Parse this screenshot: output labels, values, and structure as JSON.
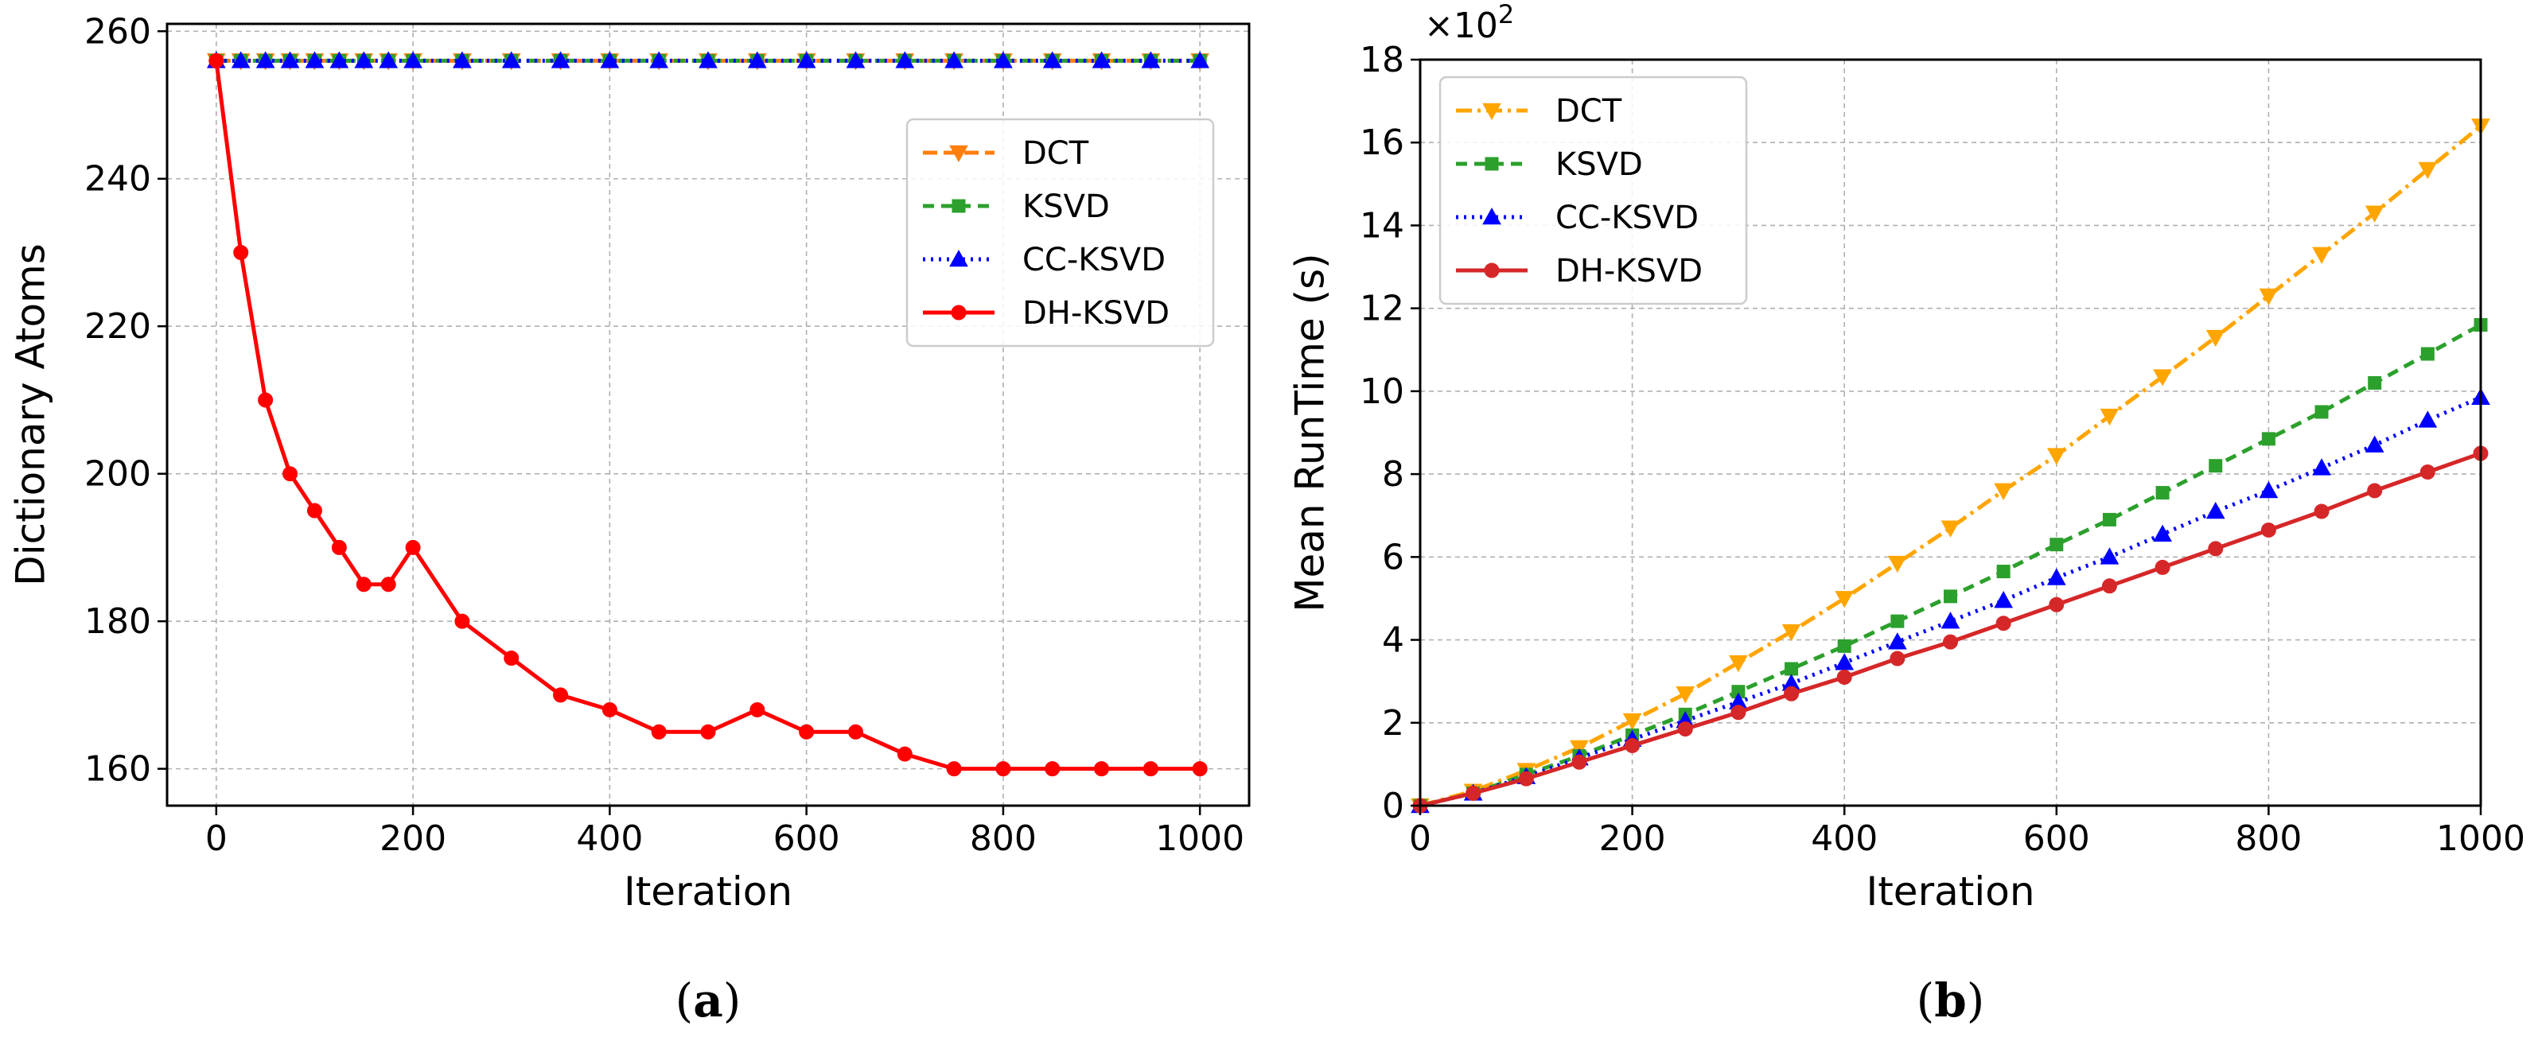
{
  "chart_data": [
    {
      "id": "a",
      "type": "line",
      "panel_label": "a",
      "xlabel": "Iteration",
      "ylabel": "Dictionary Atoms",
      "xlim": [
        -50,
        1050
      ],
      "ylim": [
        155,
        261
      ],
      "xticks": [
        0,
        200,
        400,
        600,
        800,
        1000
      ],
      "yticks": [
        160,
        180,
        200,
        220,
        240,
        260
      ],
      "grid": true,
      "legend_position": "upper-right",
      "series": [
        {
          "name": "DCT",
          "color": "#ff7f0e",
          "dash": "18 8",
          "marker": "triangle-down",
          "width": 5,
          "x": [
            0,
            25,
            50,
            75,
            100,
            125,
            150,
            175,
            200,
            250,
            300,
            350,
            400,
            450,
            500,
            550,
            600,
            650,
            700,
            750,
            800,
            850,
            900,
            950,
            1000
          ],
          "y": [
            256,
            256,
            256,
            256,
            256,
            256,
            256,
            256,
            256,
            256,
            256,
            256,
            256,
            256,
            256,
            256,
            256,
            256,
            256,
            256,
            256,
            256,
            256,
            256,
            256
          ]
        },
        {
          "name": "KSVD",
          "color": "#2ca02c",
          "dash": "14 9",
          "marker": "square",
          "width": 5,
          "x": [
            0,
            25,
            50,
            75,
            100,
            125,
            150,
            175,
            200,
            250,
            300,
            350,
            400,
            450,
            500,
            550,
            600,
            650,
            700,
            750,
            800,
            850,
            900,
            950,
            1000
          ],
          "y": [
            256,
            256,
            256,
            256,
            256,
            256,
            256,
            256,
            256,
            256,
            256,
            256,
            256,
            256,
            256,
            256,
            256,
            256,
            256,
            256,
            256,
            256,
            256,
            256,
            256
          ]
        },
        {
          "name": "CC-KSVD",
          "color": "#0000ff",
          "dash": "3 7",
          "marker": "triangle-up",
          "width": 5,
          "x": [
            0,
            25,
            50,
            75,
            100,
            125,
            150,
            175,
            200,
            250,
            300,
            350,
            400,
            450,
            500,
            550,
            600,
            650,
            700,
            750,
            800,
            850,
            900,
            950,
            1000
          ],
          "y": [
            256,
            256,
            256,
            256,
            256,
            256,
            256,
            256,
            256,
            256,
            256,
            256,
            256,
            256,
            256,
            256,
            256,
            256,
            256,
            256,
            256,
            256,
            256,
            256,
            256
          ]
        },
        {
          "name": "DH-KSVD",
          "color": "#ff0000",
          "dash": "",
          "marker": "circle",
          "width": 5,
          "x": [
            0,
            25,
            50,
            75,
            100,
            125,
            150,
            175,
            200,
            250,
            300,
            350,
            400,
            450,
            500,
            550,
            600,
            650,
            700,
            750,
            800,
            850,
            900,
            950,
            1000
          ],
          "y": [
            256,
            230,
            210,
            200,
            195,
            190,
            185,
            185,
            190,
            180,
            175,
            170,
            168,
            165,
            165,
            168,
            165,
            165,
            162,
            160,
            160,
            160,
            160,
            160,
            160
          ]
        }
      ]
    },
    {
      "id": "b",
      "type": "line",
      "panel_label": "b",
      "xlabel": "Iteration",
      "ylabel": "Mean RunTime (s)",
      "scale_label": "×10",
      "scale_exponent": "2",
      "xlim": [
        0,
        1000
      ],
      "ylim": [
        0,
        18
      ],
      "xticks": [
        0,
        200,
        400,
        600,
        800,
        1000
      ],
      "yticks": [
        0,
        2,
        4,
        6,
        8,
        10,
        12,
        14,
        16,
        18
      ],
      "grid": true,
      "legend_position": "upper-left",
      "series": [
        {
          "name": "DCT",
          "color": "#ffa500",
          "dash": "20 7 4 7",
          "marker": "triangle-down",
          "width": 5,
          "x": [
            0,
            50,
            100,
            150,
            200,
            250,
            300,
            350,
            400,
            450,
            500,
            550,
            600,
            650,
            700,
            750,
            800,
            850,
            900,
            950,
            1000
          ],
          "y": [
            0,
            0.35,
            0.85,
            1.4,
            2.05,
            2.7,
            3.45,
            4.2,
            5.0,
            5.85,
            6.7,
            7.6,
            8.45,
            9.4,
            10.35,
            11.3,
            12.3,
            13.3,
            14.3,
            15.35,
            16.4
          ]
        },
        {
          "name": "KSVD",
          "color": "#2ca02c",
          "dash": "14 9",
          "marker": "square",
          "width": 5,
          "x": [
            0,
            50,
            100,
            150,
            200,
            250,
            300,
            350,
            400,
            450,
            500,
            550,
            600,
            650,
            700,
            750,
            800,
            850,
            900,
            950,
            1000
          ],
          "y": [
            0,
            0.3,
            0.75,
            1.2,
            1.7,
            2.2,
            2.75,
            3.3,
            3.85,
            4.45,
            5.05,
            5.65,
            6.3,
            6.9,
            7.55,
            8.2,
            8.85,
            9.5,
            10.2,
            10.9,
            11.6
          ]
        },
        {
          "name": "CC-KSVD",
          "color": "#0000ff",
          "dash": "3 7",
          "marker": "triangle-up",
          "width": 5,
          "x": [
            0,
            50,
            100,
            150,
            200,
            250,
            300,
            350,
            400,
            450,
            500,
            550,
            600,
            650,
            700,
            750,
            800,
            850,
            900,
            950,
            1000
          ],
          "y": [
            0,
            0.3,
            0.7,
            1.15,
            1.6,
            2.05,
            2.5,
            2.95,
            3.45,
            3.95,
            4.45,
            4.95,
            5.5,
            6.0,
            6.55,
            7.1,
            7.6,
            8.15,
            8.7,
            9.3,
            9.85
          ]
        },
        {
          "name": "DH-KSVD",
          "color": "#d62728",
          "dash": "",
          "marker": "circle",
          "width": 5,
          "x": [
            0,
            50,
            100,
            150,
            200,
            250,
            300,
            350,
            400,
            450,
            500,
            550,
            600,
            650,
            700,
            750,
            800,
            850,
            900,
            950,
            1000
          ],
          "y": [
            0,
            0.3,
            0.65,
            1.05,
            1.45,
            1.85,
            2.25,
            2.7,
            3.1,
            3.55,
            3.95,
            4.4,
            4.85,
            5.3,
            5.75,
            6.2,
            6.65,
            7.1,
            7.6,
            8.05,
            8.5
          ]
        }
      ]
    }
  ]
}
